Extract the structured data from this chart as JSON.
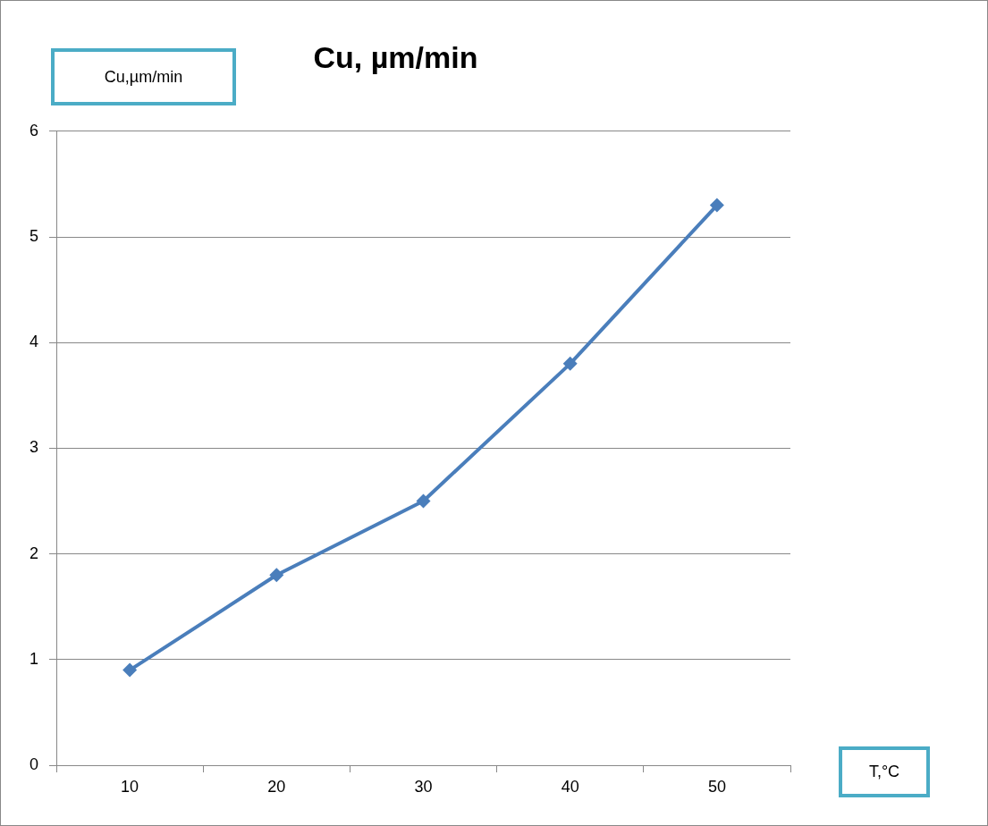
{
  "chart_data": {
    "type": "line",
    "title": "Cu, µm/min",
    "ylabel": "Cu,µm/min",
    "xlabel": "T,°C",
    "categories": [
      "10",
      "20",
      "30",
      "40",
      "50"
    ],
    "series": [
      {
        "color": "#4a7ebb",
        "values": [
          0.9,
          1.8,
          2.5,
          3.8,
          5.3
        ]
      }
    ],
    "ylim": [
      0,
      6
    ],
    "yticks": [
      0,
      1,
      2,
      3,
      4,
      5,
      6
    ],
    "grid": "y",
    "legend": false,
    "marker": "diamond",
    "line_style": "solid"
  }
}
